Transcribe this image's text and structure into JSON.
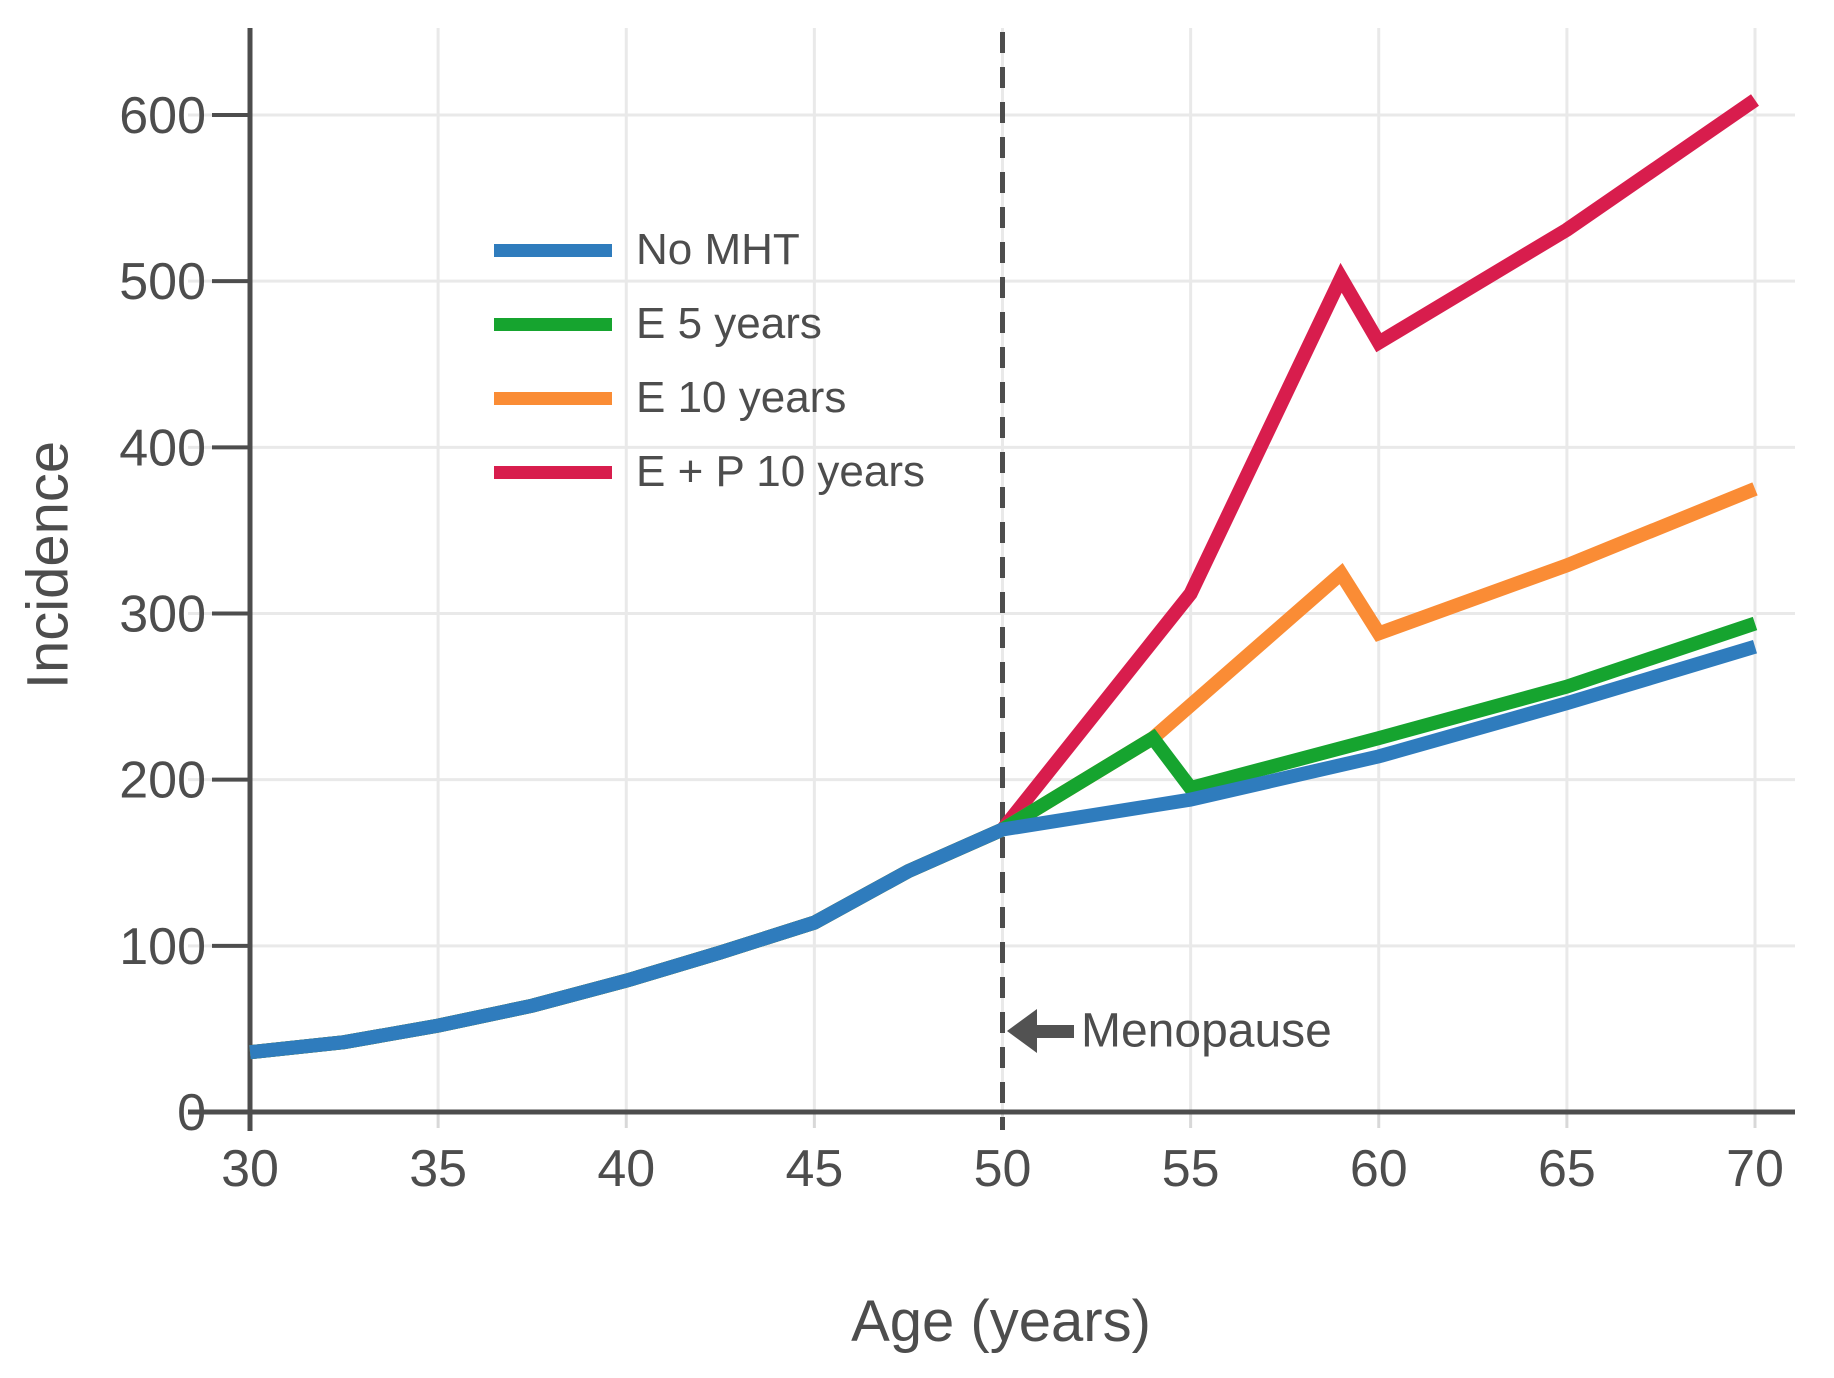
{
  "chart_data": {
    "type": "line",
    "title": "",
    "xlabel": "Age (years)",
    "ylabel": "Incidence",
    "x_ticks": [
      30,
      35,
      40,
      45,
      50,
      55,
      60,
      65,
      70
    ],
    "y_ticks": [
      0,
      100,
      200,
      300,
      400,
      500,
      600
    ],
    "xlim": [
      28.4,
      71.1
    ],
    "ylim": [
      0,
      651
    ],
    "grid": true,
    "legend_position": "upper-left-inside",
    "menopause_line": {
      "x": 50,
      "style": "dashed"
    },
    "annotation": {
      "text": "Menopause",
      "arrow_points_to_x": 50,
      "y_value": 48
    },
    "series": [
      {
        "name": "No MHT",
        "color": "#2f7cbd",
        "x": [
          30,
          32.5,
          35,
          37.5,
          40,
          42.5,
          45,
          47.5,
          50,
          55,
          60,
          65,
          70
        ],
        "y": [
          36,
          42,
          52,
          64,
          79,
          96,
          114,
          145,
          170,
          188,
          214,
          246,
          280
        ]
      },
      {
        "name": "E 5 years",
        "color": "#16a42f",
        "x": [
          30,
          32.5,
          35,
          37.5,
          40,
          42.5,
          45,
          47.5,
          50,
          54,
          55,
          60,
          65,
          70
        ],
        "y": [
          36,
          42,
          52,
          64,
          79,
          96,
          114,
          145,
          170,
          225,
          195,
          225,
          256,
          294
        ]
      },
      {
        "name": "E 10 years",
        "color": "#fa8c35",
        "x": [
          30,
          32.5,
          35,
          37.5,
          40,
          42.5,
          45,
          47.5,
          50,
          54,
          59,
          60,
          65,
          70
        ],
        "y": [
          36,
          42,
          52,
          64,
          79,
          96,
          114,
          145,
          170,
          225,
          324,
          288,
          329,
          375
        ]
      },
      {
        "name": "E + P 10 years",
        "color": "#d81d4d",
        "x": [
          30,
          32.5,
          35,
          37.5,
          40,
          42.5,
          45,
          47.5,
          50,
          55,
          59,
          60,
          65,
          70
        ],
        "y": [
          36,
          42,
          52,
          64,
          79,
          96,
          114,
          145,
          170,
          312,
          502,
          463,
          531,
          609
        ]
      }
    ],
    "colors": {
      "axis": "#4d4d4d",
      "grid": "#e9e9e9",
      "minor_tick": "#d8d8d8",
      "text": "#4d4d4d",
      "annotation_arrow": "#525252"
    }
  }
}
